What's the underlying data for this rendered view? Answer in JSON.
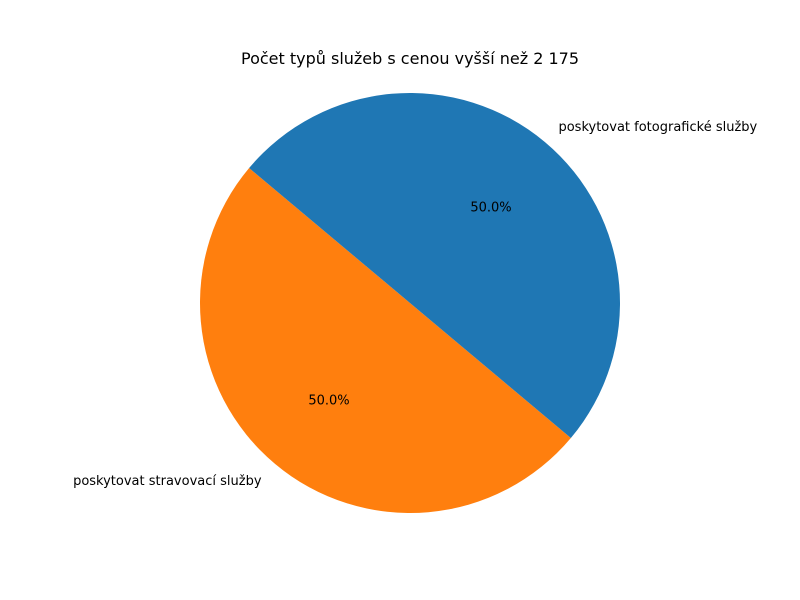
{
  "chart_data": {
    "type": "pie",
    "title": "Počet typů služeb s cenou vyšší než 2 175",
    "slices": [
      {
        "label": "poskytovat stravovací služby",
        "value": 50.0,
        "pct_text": "50.0%",
        "color": "#ff7f0e"
      },
      {
        "label": "poskytovat fotografické služby",
        "value": 50.0,
        "pct_text": "50.0%",
        "color": "#1f77b4"
      }
    ],
    "start_angle_deg": 140,
    "direction": "counterclockwise"
  }
}
